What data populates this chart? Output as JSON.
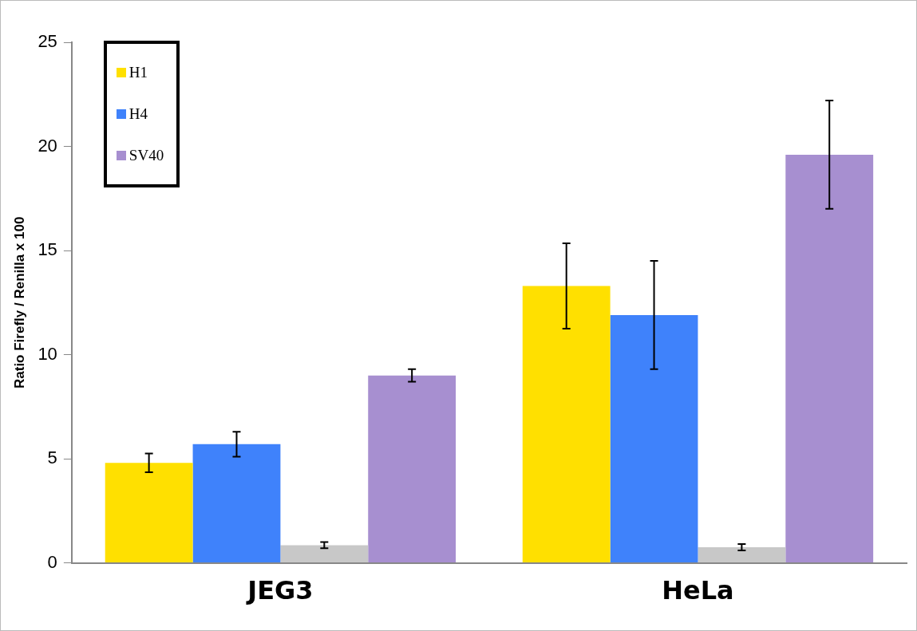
{
  "chart_data": {
    "type": "bar",
    "ylabel": "Ratio Firefly / Renilla x 100",
    "categories": [
      "JEG3",
      "HeLa"
    ],
    "series": [
      {
        "name": "H1",
        "color": "#ffe000",
        "values": [
          4.8,
          13.3
        ],
        "errors": [
          0.45,
          2.05
        ]
      },
      {
        "name": "H4",
        "color": "#3f82fb",
        "values": [
          5.7,
          11.9
        ],
        "errors": [
          0.6,
          2.6
        ]
      },
      {
        "color": "#c8c8c8",
        "values": [
          0.85,
          0.75
        ],
        "errors": [
          0.15,
          0.15
        ]
      },
      {
        "name": "SV40",
        "color": "#a78fd0",
        "values": [
          9.0,
          19.6
        ],
        "errors": [
          0.3,
          2.6
        ]
      }
    ],
    "ylim": [
      0,
      25
    ],
    "yticks": [
      0,
      5,
      10,
      15,
      20,
      25
    ],
    "grid": false,
    "legend": "top left"
  }
}
